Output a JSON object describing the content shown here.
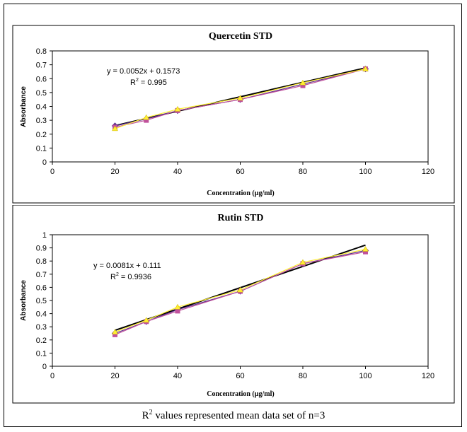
{
  "footer": {
    "r": "R",
    "sup": "2",
    "text": " values represented mean data set of n=3"
  },
  "chart_data": [
    {
      "type": "scatter",
      "title": "Quercetin STD",
      "xlabel": "Concentration (µg/ml)",
      "ylabel": "Absorbance",
      "xlim": [
        0,
        120
      ],
      "ylim": [
        0,
        0.8
      ],
      "x_ticks": [
        0,
        20,
        40,
        60,
        80,
        100,
        120
      ],
      "y_ticks": [
        0,
        0.1,
        0.2,
        0.3,
        0.4,
        0.5,
        0.6,
        0.7,
        0.8
      ],
      "x": [
        20,
        30,
        40,
        60,
        80,
        100
      ],
      "series": [
        {
          "values": [
            0.26,
            0.31,
            0.37,
            0.45,
            0.56,
            0.67
          ],
          "color": "#5a2d8a",
          "marker": "diamond"
        },
        {
          "values": [
            0.25,
            0.3,
            0.37,
            0.45,
            0.55,
            0.67
          ],
          "color": "#c0509c",
          "marker": "square"
        },
        {
          "values": [
            0.24,
            0.32,
            0.38,
            0.46,
            0.57,
            0.67
          ],
          "color": "#ffee33",
          "marker": "triangle"
        }
      ],
      "trendline": {
        "slope": 0.0052,
        "intercept": 0.1573,
        "color": "#000000"
      },
      "equation": "y = 0.0052x + 0.1573",
      "r2_label": "R",
      "r2_sup": "2",
      "r2_value": " = 0.995"
    },
    {
      "type": "scatter",
      "title": "Rutin STD",
      "xlabel": "Concentration (µg/ml)",
      "ylabel": "Absorbance",
      "xlim": [
        0,
        120
      ],
      "ylim": [
        0,
        1
      ],
      "x_ticks": [
        0,
        20,
        40,
        60,
        80,
        100,
        120
      ],
      "y_ticks": [
        0,
        0.1,
        0.2,
        0.3,
        0.4,
        0.5,
        0.6,
        0.7,
        0.8,
        0.9,
        1
      ],
      "x": [
        20,
        30,
        40,
        60,
        80,
        100
      ],
      "series": [
        {
          "values": [
            0.25,
            0.34,
            0.43,
            0.57,
            0.78,
            0.88
          ],
          "color": "#5a2d8a",
          "marker": "diamond"
        },
        {
          "values": [
            0.24,
            0.34,
            0.42,
            0.57,
            0.78,
            0.87
          ],
          "color": "#c0509c",
          "marker": "square"
        },
        {
          "values": [
            0.26,
            0.35,
            0.45,
            0.58,
            0.79,
            0.89
          ],
          "color": "#ffee33",
          "marker": "triangle"
        }
      ],
      "trendline": {
        "slope": 0.0081,
        "intercept": 0.111,
        "color": "#000000"
      },
      "equation": "y = 0.0081x + 0.111",
      "r2_label": "R",
      "r2_sup": "2",
      "r2_value": " = 0.9936"
    }
  ]
}
